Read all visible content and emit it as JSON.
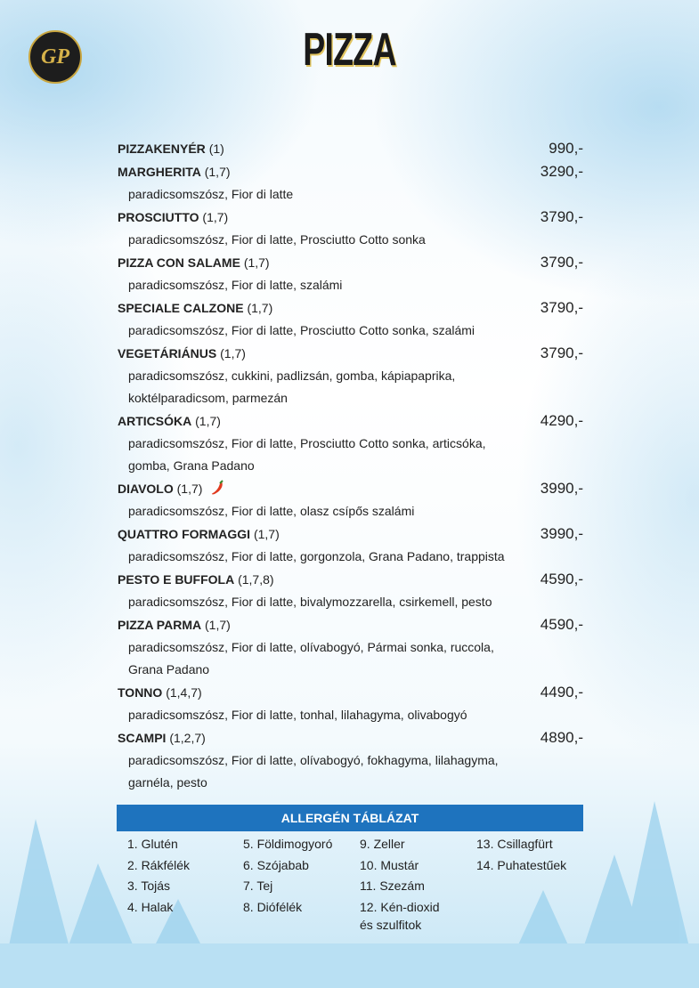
{
  "header": {
    "logo": "GP",
    "title": "PIZZA"
  },
  "items": [
    {
      "name": "PIZZAKENYÉR",
      "allergens": "(1)",
      "price": "990,-"
    },
    {
      "name": "MARGHERITA",
      "allergens": "(1,7)",
      "price": "3290,-",
      "description": "paradicsomszósz, Fior di latte"
    },
    {
      "name": "PROSCIUTTO",
      "allergens": "(1,7)",
      "price": "3790,-",
      "description": "paradicsomszósz, Fior di latte, Prosciutto Cotto sonka"
    },
    {
      "name": "PIZZA CON SALAME",
      "allergens": "(1,7)",
      "price": "3790,-",
      "description": "paradicsomszósz, Fior di latte, szalámi"
    },
    {
      "name": "SPECIALE CALZONE",
      "allergens": "(1,7)",
      "price": "3790,-",
      "description": "paradicsomszósz, Fior di latte, Prosciutto Cotto sonka, szalámi"
    },
    {
      "name": "VEGETÁRIÁNUS",
      "allergens": "(1,7)",
      "price": "3790,-",
      "description": "paradicsomszósz, cukkini, padlizsán, gomba, kápiapaprika, koktélparadicsom, parmezán"
    },
    {
      "name": "ARTICSÓKA",
      "allergens": "(1,7)",
      "price": "4290,-",
      "description": "paradicsomszósz, Fior di latte, Prosciutto Cotto sonka, articsóka, gomba, Grana Padano"
    },
    {
      "name": "DIAVOLO",
      "allergens": "(1,7)",
      "price": "3990,-",
      "description": "paradicsomszósz, Fior di latte, olasz csípős szalámi",
      "spicy": true
    },
    {
      "name": "QUATTRO FORMAGGI",
      "allergens": "(1,7)",
      "price": "3990,-",
      "description": "paradicsomszósz, Fior di latte, gorgonzola, Grana Padano, trappista"
    },
    {
      "name": "PESTO E BUFFOLA",
      "allergens": "(1,7,8)",
      "price": "4590,-",
      "description": "paradicsomszósz, Fior di latte, bivalymozzarella, csirkemell, pesto"
    },
    {
      "name": "PIZZA PARMA",
      "allergens": "(1,7)",
      "price": "4590,-",
      "description": "paradicsomszósz, Fior di latte, olívabogyó, Pármai sonka, ruccola, Grana Padano"
    },
    {
      "name": "TONNO",
      "allergens": "(1,4,7)",
      "price": "4490,-",
      "description": "paradicsomszósz, Fior di latte, tonhal, lilahagyma, olivabogyó"
    },
    {
      "name": "SCAMPI",
      "allergens": "(1,2,7)",
      "price": "4890,-",
      "description": "paradicsomszósz, Fior di latte, olívabogyó, fokhagyma, lilahagyma, garnéla, pesto"
    }
  ],
  "allergen_table": {
    "title": "ALLERGÉN TÁBLÁZAT",
    "items": [
      "1. Glutén",
      "2. Rákfélék",
      "3. Tojás",
      "4. Halak",
      "5. Földimogyoró",
      "6. Szójabab",
      "7. Tej",
      "8. Diófélék",
      "9. Zeller",
      "10. Mustár",
      "11. Szezám",
      "12. Kén-dioxid és szulfitok",
      "13. Csillagfürt",
      "14. Puhatestűek"
    ]
  }
}
